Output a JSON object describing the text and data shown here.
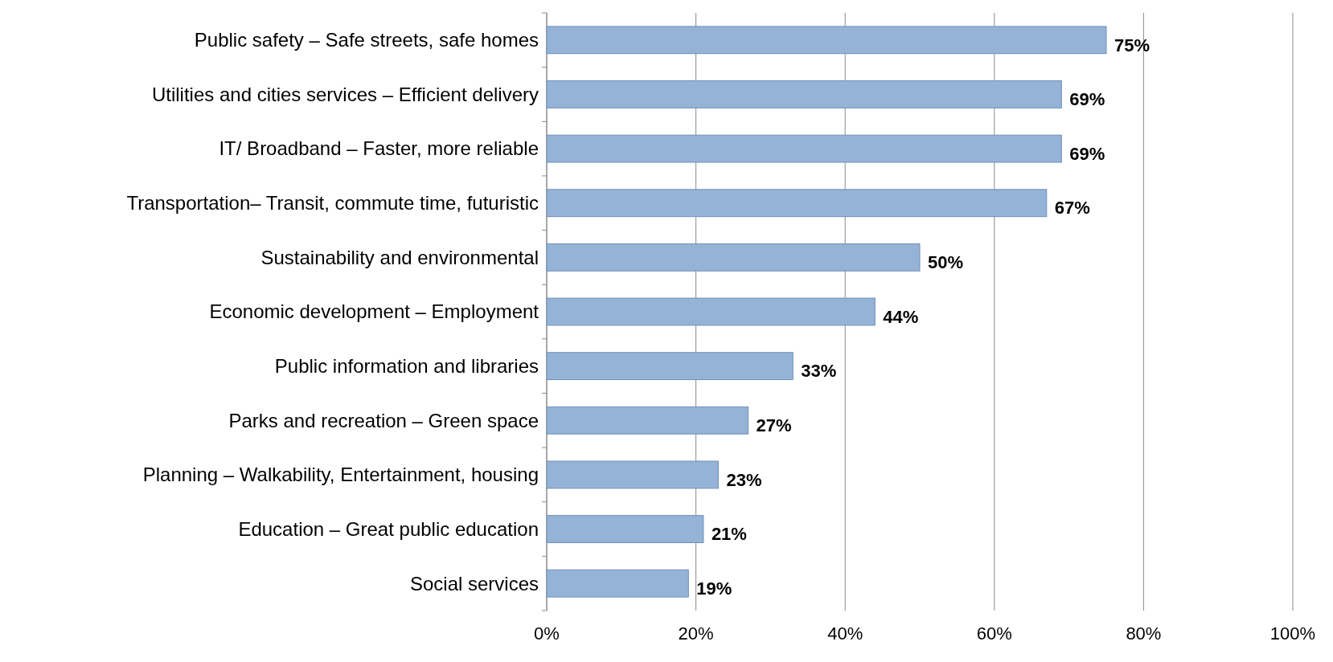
{
  "chart_data": {
    "type": "bar",
    "orientation": "horizontal",
    "categories": [
      "Public safety – Safe streets, safe homes",
      "Utilities and cities services – Efficient delivery",
      "IT/ Broadband – Faster, more reliable",
      "Transportation– Transit, commute time, futuristic",
      "Sustainability and environmental",
      "Economic development – Employment",
      "Public information and libraries",
      "Parks and recreation – Green space",
      "Planning – Walkability, Entertainment, housing",
      "Education – Great public education",
      "Social services"
    ],
    "values": [
      75,
      69,
      69,
      67,
      50,
      44,
      33,
      27,
      23,
      21,
      19
    ],
    "value_labels": [
      "75%",
      "69%",
      "69%",
      "67%",
      "50%",
      "44%",
      "33%",
      "27%",
      "23%",
      "21%",
      "19%"
    ],
    "color": "#95b3d7",
    "xlim": [
      0,
      100
    ],
    "xticks": [
      {
        "value": 0,
        "label": "0%"
      },
      {
        "value": 20,
        "label": "20%"
      },
      {
        "value": 40,
        "label": "40%"
      },
      {
        "value": 60,
        "label": "60%"
      },
      {
        "value": 80,
        "label": "80%"
      },
      {
        "value": 100,
        "label": "100%"
      }
    ],
    "grid": "x"
  }
}
